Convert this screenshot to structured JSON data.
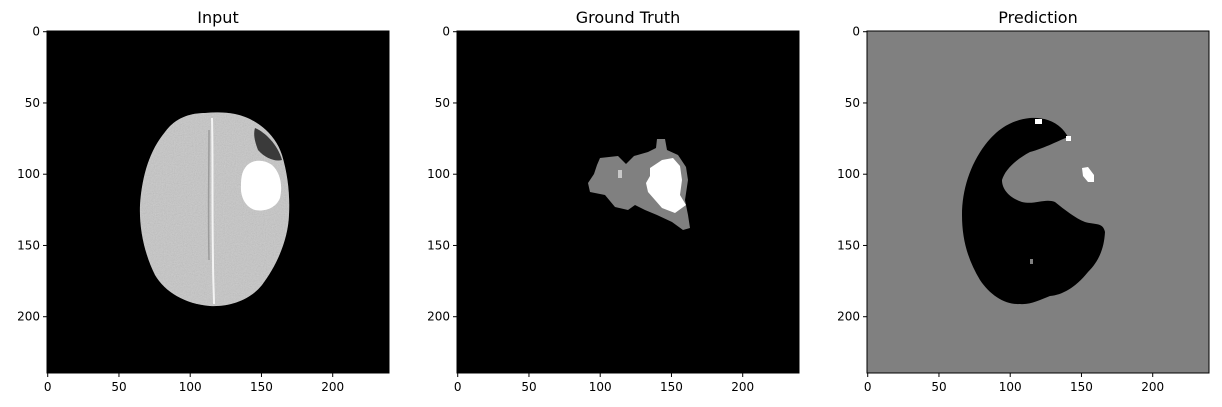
{
  "figure": {
    "panels": [
      {
        "title": "Input",
        "xticks": [
          "0",
          "50",
          "100",
          "150",
          "200"
        ],
        "yticks": [
          "0",
          "50",
          "100",
          "150",
          "200"
        ],
        "background": "#000000"
      },
      {
        "title": "Ground Truth",
        "xticks": [
          "0",
          "50",
          "100",
          "150",
          "200"
        ],
        "yticks": [
          "0",
          "50",
          "100",
          "150",
          "200"
        ],
        "background": "#000000"
      },
      {
        "title": "Prediction",
        "xticks": [
          "0",
          "50",
          "100",
          "150",
          "200"
        ],
        "yticks": [
          "0",
          "50",
          "100",
          "150",
          "200"
        ],
        "background": "#808080"
      }
    ],
    "image_size": [
      240,
      240
    ],
    "tick_values": [
      0,
      50,
      100,
      150,
      200
    ],
    "colors": {
      "black": "#000000",
      "gray": "#808080",
      "white": "#ffffff",
      "brain_tissue": "#c8c8c8"
    }
  }
}
